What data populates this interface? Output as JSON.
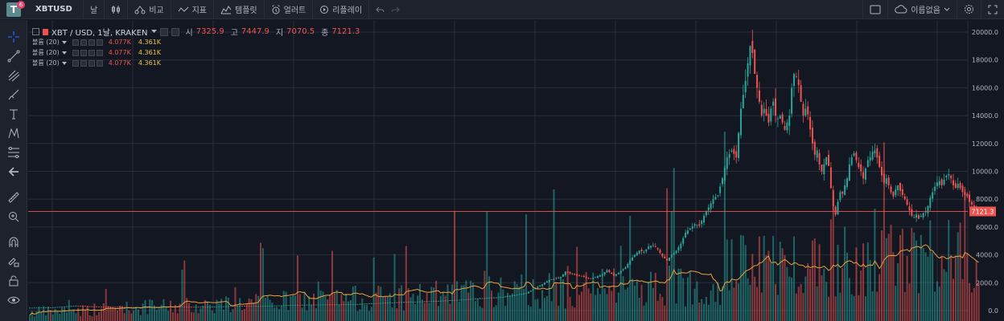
{
  "logo": {
    "letter": "T",
    "badge": "6"
  },
  "symbol": "XBTUSD",
  "toolbar": {
    "interval": "날",
    "compare": "비교",
    "indicators": "지표",
    "templates": "템플릿",
    "alert": "얼러트",
    "replay": "리플레이",
    "layout_name": "이름없음"
  },
  "legend": {
    "title": "XBT / USD, 1날, KRAKEN",
    "open_label": "시",
    "open": "7325.9",
    "high_label": "고",
    "high": "7447.9",
    "low_label": "지",
    "low": "7070.5",
    "close_label": "종",
    "close": "7121.3"
  },
  "volume_rows": [
    {
      "label": "볼륨 (20)",
      "v1": "4.077K",
      "v2": "4.361K"
    },
    {
      "label": "볼륨 (20)",
      "v1": "4.077K",
      "v2": "4.361K"
    },
    {
      "label": "볼륨 (20)",
      "v1": "4.077K",
      "v2": "4.361K"
    }
  ],
  "left_tools": [
    "crosshair-icon",
    "trend-line-icon",
    "pitchfork-icon",
    "brush-icon",
    "text-icon",
    "pattern-icon",
    "fib-icon",
    "back-arrow-icon",
    "ruler-icon",
    "zoom-icon",
    "magnet-icon",
    "lock-drawing-icon",
    "lock-icon",
    "eye-icon"
  ],
  "colors": {
    "up": "#26a69a",
    "down": "#ef5350",
    "ma": "#e8a23a",
    "price_line": "#ef5350"
  },
  "price_axis": {
    "ticks": [
      "20000.0",
      "18000.0",
      "16000.0",
      "14000.0",
      "12000.0",
      "10000.0",
      "8000.0",
      "6000.0",
      "4000.0",
      "2000.0",
      "0.0"
    ],
    "last_price": "7121.3"
  },
  "chart_data": {
    "type": "candlestick",
    "y_range": [
      0,
      20500
    ],
    "current_price": 7121.3,
    "close_path": [
      [
        0,
        200
      ],
      [
        10,
        230
      ],
      [
        20,
        350
      ],
      [
        30,
        280
      ],
      [
        40,
        250
      ],
      [
        50,
        230
      ],
      [
        60,
        300
      ],
      [
        70,
        260
      ],
      [
        80,
        280
      ],
      [
        90,
        340
      ],
      [
        100,
        320
      ],
      [
        110,
        380
      ],
      [
        120,
        420
      ],
      [
        130,
        430
      ],
      [
        140,
        450
      ],
      [
        150,
        530
      ],
      [
        160,
        600
      ],
      [
        165,
        620
      ],
      [
        170,
        650
      ],
      [
        175,
        680
      ],
      [
        180,
        720
      ],
      [
        185,
        760
      ],
      [
        190,
        810
      ],
      [
        195,
        880
      ],
      [
        200,
        920
      ],
      [
        205,
        980
      ],
      [
        210,
        1100
      ],
      [
        215,
        1250
      ],
      [
        220,
        1700
      ],
      [
        225,
        2200
      ],
      [
        230,
        2400
      ],
      [
        232,
        2800
      ],
      [
        235,
        2600
      ],
      [
        238,
        2500
      ],
      [
        240,
        2400
      ],
      [
        243,
        2300
      ],
      [
        245,
        2400
      ],
      [
        248,
        2600
      ],
      [
        250,
        2900
      ],
      [
        253,
        2500
      ],
      [
        255,
        2700
      ],
      [
        258,
        3100
      ],
      [
        260,
        3600
      ],
      [
        262,
        4000
      ],
      [
        264,
        4300
      ],
      [
        266,
        4200
      ],
      [
        268,
        4600
      ],
      [
        270,
        4700
      ],
      [
        272,
        4400
      ],
      [
        274,
        3900
      ],
      [
        276,
        3600
      ],
      [
        278,
        4000
      ],
      [
        280,
        4300
      ],
      [
        282,
        4800
      ],
      [
        284,
        5600
      ],
      [
        286,
        5900
      ],
      [
        288,
        6200
      ],
      [
        290,
        6100
      ],
      [
        292,
        6800
      ],
      [
        294,
        7400
      ],
      [
        296,
        8000
      ],
      [
        298,
        8300
      ],
      [
        300,
        9500
      ],
      [
        302,
        11000
      ],
      [
        304,
        11500
      ],
      [
        306,
        11000
      ],
      [
        308,
        14500
      ],
      [
        310,
        16500
      ],
      [
        312,
        19000
      ],
      [
        313,
        18500
      ],
      [
        314,
        17000
      ],
      [
        316,
        15000
      ],
      [
        317,
        14000
      ],
      [
        318,
        14500
      ],
      [
        320,
        13500
      ],
      [
        321,
        14500
      ],
      [
        322,
        15000
      ],
      [
        323,
        14000
      ],
      [
        324,
        13800
      ],
      [
        325,
        14000
      ],
      [
        326,
        13500
      ],
      [
        327,
        13000
      ],
      [
        328,
        13500
      ],
      [
        329,
        14000
      ],
      [
        330,
        16000
      ],
      [
        331,
        17000
      ],
      [
        332,
        16800
      ],
      [
        333,
        16200
      ],
      [
        334,
        15000
      ],
      [
        335,
        14000
      ],
      [
        336,
        14500
      ],
      [
        337,
        14100
      ],
      [
        338,
        13000
      ],
      [
        339,
        12000
      ],
      [
        340,
        11200
      ],
      [
        341,
        11500
      ],
      [
        342,
        10500
      ],
      [
        343,
        10000
      ],
      [
        344,
        10500
      ],
      [
        345,
        11000
      ],
      [
        346,
        10400
      ],
      [
        347,
        8800
      ],
      [
        348,
        7500
      ],
      [
        349,
        6900
      ],
      [
        350,
        7800
      ],
      [
        351,
        8500
      ],
      [
        352,
        8400
      ],
      [
        353,
        9000
      ],
      [
        354,
        9500
      ],
      [
        355,
        10500
      ],
      [
        356,
        11000
      ],
      [
        357,
        11300
      ],
      [
        358,
        10800
      ],
      [
        359,
        10300
      ],
      [
        360,
        10000
      ],
      [
        361,
        9500
      ],
      [
        362,
        10200
      ],
      [
        363,
        10800
      ],
      [
        364,
        11000
      ],
      [
        365,
        11400
      ],
      [
        366,
        11500
      ],
      [
        367,
        11000
      ],
      [
        368,
        10300
      ],
      [
        369,
        9700
      ],
      [
        370,
        9200
      ],
      [
        371,
        9500
      ],
      [
        372,
        9000
      ],
      [
        373,
        8500
      ],
      [
        374,
        8200
      ],
      [
        375,
        8700
      ],
      [
        376,
        9000
      ],
      [
        377,
        8600
      ],
      [
        378,
        8300
      ],
      [
        379,
        8000
      ],
      [
        380,
        7600
      ],
      [
        381,
        7200
      ],
      [
        382,
        6800
      ],
      [
        383,
        6700
      ],
      [
        384,
        6900
      ],
      [
        385,
        6600
      ],
      [
        386,
        6800
      ],
      [
        387,
        7000
      ],
      [
        388,
        7100
      ],
      [
        389,
        7500
      ],
      [
        390,
        8100
      ],
      [
        391,
        8500
      ],
      [
        392,
        8900
      ],
      [
        393,
        9200
      ],
      [
        394,
        9300
      ],
      [
        395,
        9000
      ],
      [
        396,
        9400
      ],
      [
        397,
        9700
      ],
      [
        398,
        9800
      ],
      [
        399,
        9500
      ],
      [
        400,
        9000
      ],
      [
        401,
        8800
      ],
      [
        402,
        9100
      ],
      [
        403,
        8800
      ],
      [
        404,
        8500
      ],
      [
        405,
        8300
      ],
      [
        406,
        8200
      ],
      [
        407,
        7800
      ],
      [
        408,
        7600
      ],
      [
        409,
        7400
      ],
      [
        410,
        7300
      ],
      [
        411,
        7121
      ]
    ]
  }
}
